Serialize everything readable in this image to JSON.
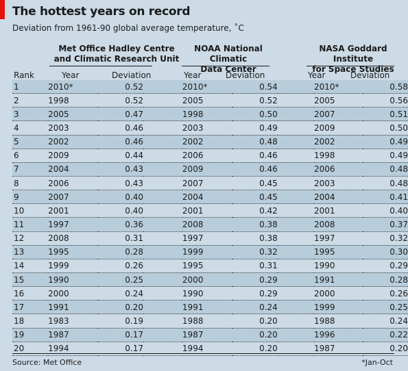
{
  "title": "The hottest years on record",
  "subtitle": "Deviation from 1961-90 global average temperature, ˚C",
  "sources": [
    {
      "line1": "Met Office Hadley Centre",
      "line2": "and Climatic Research Unit"
    },
    {
      "line1": "NOAA National Climatic",
      "line2": "Data Center"
    },
    {
      "line1": "NASA Goddard Institute",
      "line2": "for Space Studies"
    }
  ],
  "headers": {
    "rank": "Rank",
    "year": "Year",
    "deviation": "Deviation"
  },
  "chart_data": {
    "type": "table",
    "title": "The hottest years on record",
    "subtitle": "Deviation from 1961-90 global average temperature, ˚C",
    "columns": [
      "Rank",
      "Met Office Hadley Centre and Climatic Research Unit: Year",
      "Deviation",
      "NOAA National Climatic Data Center: Year",
      "Deviation",
      "NASA Goddard Institute for Space Studies: Year",
      "Deviation"
    ],
    "rows": [
      {
        "rank": "1",
        "y1": "2010*",
        "d1": "0.52",
        "y2": "2010*",
        "d2": "0.54",
        "y3": "2010*",
        "d3": "0.58"
      },
      {
        "rank": "2",
        "y1": "1998",
        "d1": "0.52",
        "y2": "2005",
        "d2": "0.52",
        "y3": "2005",
        "d3": "0.56"
      },
      {
        "rank": "3",
        "y1": "2005",
        "d1": "0.47",
        "y2": "1998",
        "d2": "0.50",
        "y3": "2007",
        "d3": "0.51"
      },
      {
        "rank": "4",
        "y1": "2003",
        "d1": "0.46",
        "y2": "2003",
        "d2": "0.49",
        "y3": "2009",
        "d3": "0.50"
      },
      {
        "rank": "5",
        "y1": "2002",
        "d1": "0.46",
        "y2": "2002",
        "d2": "0.48",
        "y3": "2002",
        "d3": "0.49"
      },
      {
        "rank": "6",
        "y1": "2009",
        "d1": "0.44",
        "y2": "2006",
        "d2": "0.46",
        "y3": "1998",
        "d3": "0.49"
      },
      {
        "rank": "7",
        "y1": "2004",
        "d1": "0.43",
        "y2": "2009",
        "d2": "0.46",
        "y3": "2006",
        "d3": "0.48"
      },
      {
        "rank": "8",
        "y1": "2006",
        "d1": "0.43",
        "y2": "2007",
        "d2": "0.45",
        "y3": "2003",
        "d3": "0.48"
      },
      {
        "rank": "9",
        "y1": "2007",
        "d1": "0.40",
        "y2": "2004",
        "d2": "0.45",
        "y3": "2004",
        "d3": "0.41"
      },
      {
        "rank": "10",
        "y1": "2001",
        "d1": "0.40",
        "y2": "2001",
        "d2": "0.42",
        "y3": "2001",
        "d3": "0.40"
      },
      {
        "rank": "11",
        "y1": "1997",
        "d1": "0.36",
        "y2": "2008",
        "d2": "0.38",
        "y3": "2008",
        "d3": "0.37"
      },
      {
        "rank": "12",
        "y1": "2008",
        "d1": "0.31",
        "y2": "1997",
        "d2": "0.38",
        "y3": "1997",
        "d3": "0.32"
      },
      {
        "rank": "13",
        "y1": "1995",
        "d1": "0.28",
        "y2": "1999",
        "d2": "0.32",
        "y3": "1995",
        "d3": "0.30"
      },
      {
        "rank": "14",
        "y1": "1999",
        "d1": "0.26",
        "y2": "1995",
        "d2": "0.31",
        "y3": "1990",
        "d3": "0.29"
      },
      {
        "rank": "15",
        "y1": "1990",
        "d1": "0.25",
        "y2": "2000",
        "d2": "0.29",
        "y3": "1991",
        "d3": "0.28"
      },
      {
        "rank": "16",
        "y1": "2000",
        "d1": "0.24",
        "y2": "1990",
        "d2": "0.29",
        "y3": "2000",
        "d3": "0.26"
      },
      {
        "rank": "17",
        "y1": "1991",
        "d1": "0.20",
        "y2": "1991",
        "d2": "0.24",
        "y3": "1999",
        "d3": "0.25"
      },
      {
        "rank": "18",
        "y1": "1983",
        "d1": "0.19",
        "y2": "1988",
        "d2": "0.20",
        "y3": "1988",
        "d3": "0.24"
      },
      {
        "rank": "19",
        "y1": "1987",
        "d1": "0.17",
        "y2": "1987",
        "d2": "0.20",
        "y3": "1996",
        "d3": "0.22"
      },
      {
        "rank": "20",
        "y1": "1994",
        "d1": "0.17",
        "y2": "1994",
        "d2": "0.20",
        "y3": "1987",
        "d3": "0.20"
      }
    ]
  },
  "footer": {
    "source": "Source: Met Office",
    "note": "*Jan-Oct"
  },
  "colors": {
    "background": "#ccdbe6",
    "shaded_row": "#b8cddb",
    "accent": "#e3120b"
  }
}
